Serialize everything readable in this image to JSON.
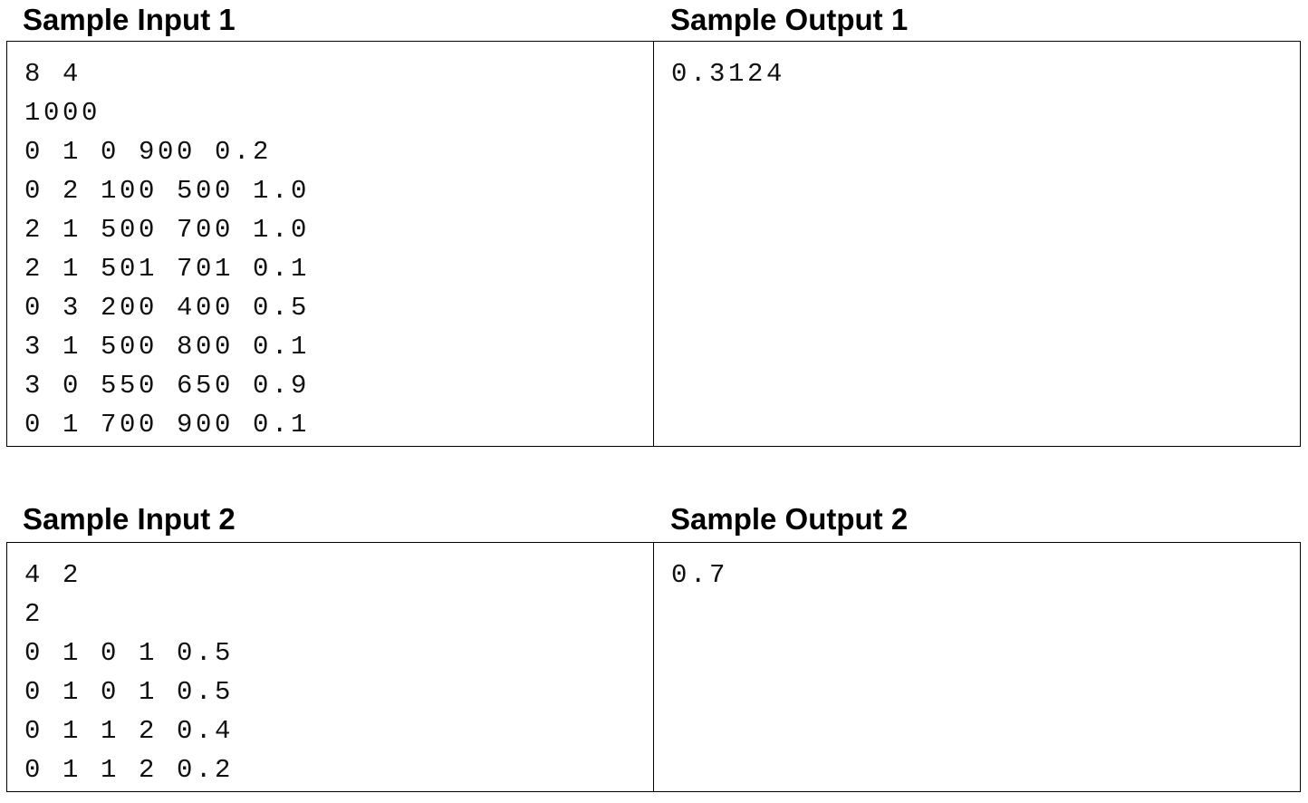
{
  "samples": [
    {
      "input_heading": "Sample Input 1",
      "output_heading": "Sample Output 1",
      "input_text": "8 4\n1000\n0 1 0 900 0.2\n0 2 100 500 1.0\n2 1 500 700 1.0\n2 1 501 701 0.1\n0 3 200 400 0.5\n3 1 500 800 0.1\n3 0 550 650 0.9\n0 1 700 900 0.1",
      "output_text": "0.3124"
    },
    {
      "input_heading": "Sample Input 2",
      "output_heading": "Sample Output 2",
      "input_text": "4 2\n2\n0 1 0 1 0.5\n0 1 0 1 0.5\n0 1 1 2 0.4\n0 1 1 2 0.2",
      "output_text": "0.7"
    }
  ]
}
